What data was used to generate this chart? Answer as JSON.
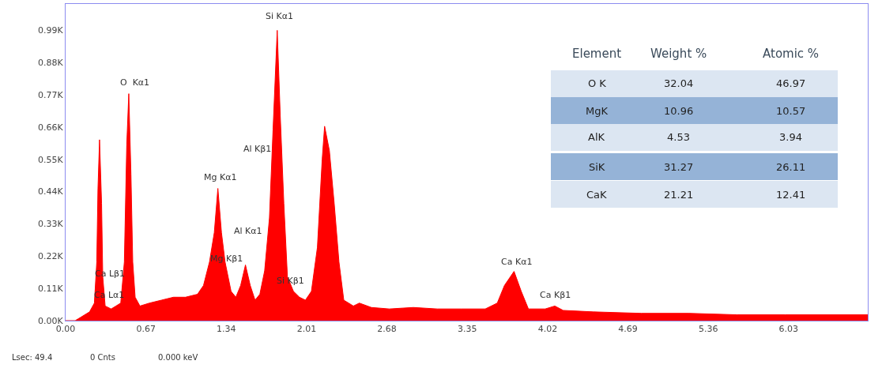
{
  "chart_data": {
    "type": "area",
    "color": "#ff0000",
    "x": [
      0.0,
      0.08,
      0.12,
      0.2,
      0.24,
      0.26,
      0.27,
      0.283,
      0.3,
      0.31,
      0.33,
      0.38,
      0.42,
      0.46,
      0.49,
      0.51,
      0.527,
      0.545,
      0.56,
      0.58,
      0.62,
      0.7,
      0.8,
      0.9,
      1.0,
      1.1,
      1.15,
      1.2,
      1.24,
      1.27,
      1.3,
      1.33,
      1.38,
      1.42,
      1.46,
      1.5,
      1.54,
      1.58,
      1.62,
      1.66,
      1.7,
      1.73,
      1.765,
      1.79,
      1.82,
      1.85,
      1.9,
      1.95,
      2.0,
      2.05,
      2.1,
      2.14,
      2.16,
      2.2,
      2.24,
      2.28,
      2.32,
      2.4,
      2.45,
      2.55,
      2.7,
      2.9,
      3.1,
      3.3,
      3.5,
      3.6,
      3.66,
      3.74,
      3.8,
      3.86,
      4.0,
      4.08,
      4.15,
      4.4,
      4.8,
      5.2,
      5.6,
      6.0,
      6.4,
      6.69
    ],
    "values": [
      0,
      0,
      0.01,
      0.03,
      0.06,
      0.2,
      0.45,
      0.617,
      0.4,
      0.15,
      0.05,
      0.04,
      0.05,
      0.06,
      0.2,
      0.6,
      0.774,
      0.5,
      0.2,
      0.08,
      0.05,
      0.06,
      0.07,
      0.08,
      0.08,
      0.09,
      0.12,
      0.2,
      0.3,
      0.451,
      0.3,
      0.2,
      0.1,
      0.08,
      0.12,
      0.19,
      0.12,
      0.07,
      0.09,
      0.17,
      0.35,
      0.65,
      0.99,
      0.7,
      0.4,
      0.15,
      0.1,
      0.08,
      0.07,
      0.1,
      0.25,
      0.55,
      0.663,
      0.58,
      0.4,
      0.2,
      0.07,
      0.05,
      0.06,
      0.045,
      0.04,
      0.045,
      0.04,
      0.04,
      0.04,
      0.06,
      0.12,
      0.168,
      0.1,
      0.04,
      0.04,
      0.05,
      0.035,
      0.03,
      0.025,
      0.025,
      0.02,
      0.02,
      0.02,
      0.02
    ],
    "xlim": [
      0,
      6.69
    ],
    "ylim": [
      0,
      1.08
    ],
    "xticks": [
      "0.00",
      0.67,
      1.34,
      2.01,
      2.68,
      3.35,
      4.02,
      4.69,
      5.36,
      6.03
    ],
    "yticks": [
      {
        "value": 0,
        "label": "0.00K"
      },
      {
        "value": 0.11,
        "label": "0.11K"
      },
      {
        "value": 0.22,
        "label": "0.22K"
      },
      {
        "value": 0.33,
        "label": "0.33K"
      },
      {
        "value": 0.44,
        "label": "0.44K"
      },
      {
        "value": 0.55,
        "label": "0.55K"
      },
      {
        "value": 0.66,
        "label": "0.66K"
      },
      {
        "value": 0.77,
        "label": "0.77K"
      },
      {
        "value": 0.88,
        "label": "0.88K"
      },
      {
        "value": 0.99,
        "label": "0.99K"
      }
    ],
    "annotations": [
      "Si Kα1",
      "O  Kα1",
      "Al Kβ1",
      "Mg Kα1",
      "Al Kα1",
      "Mg Kβ1",
      "Si Kβ1",
      "Ca Lβ1",
      "Ca Lα1",
      "Ca Kα1",
      "Ca Kβ1",
      "Element",
      "Weight %",
      "Atomic %",
      "O K",
      "32.04",
      "46.97",
      "MgK",
      "10.96",
      "10.57",
      "AlK",
      "4.53",
      "3.94",
      "SiK",
      "31.27",
      "26.11",
      "CaK",
      "21.21",
      "12.41",
      "Lsec: 49.4",
      "0 Cnts",
      "0.000 keV"
    ]
  }
}
